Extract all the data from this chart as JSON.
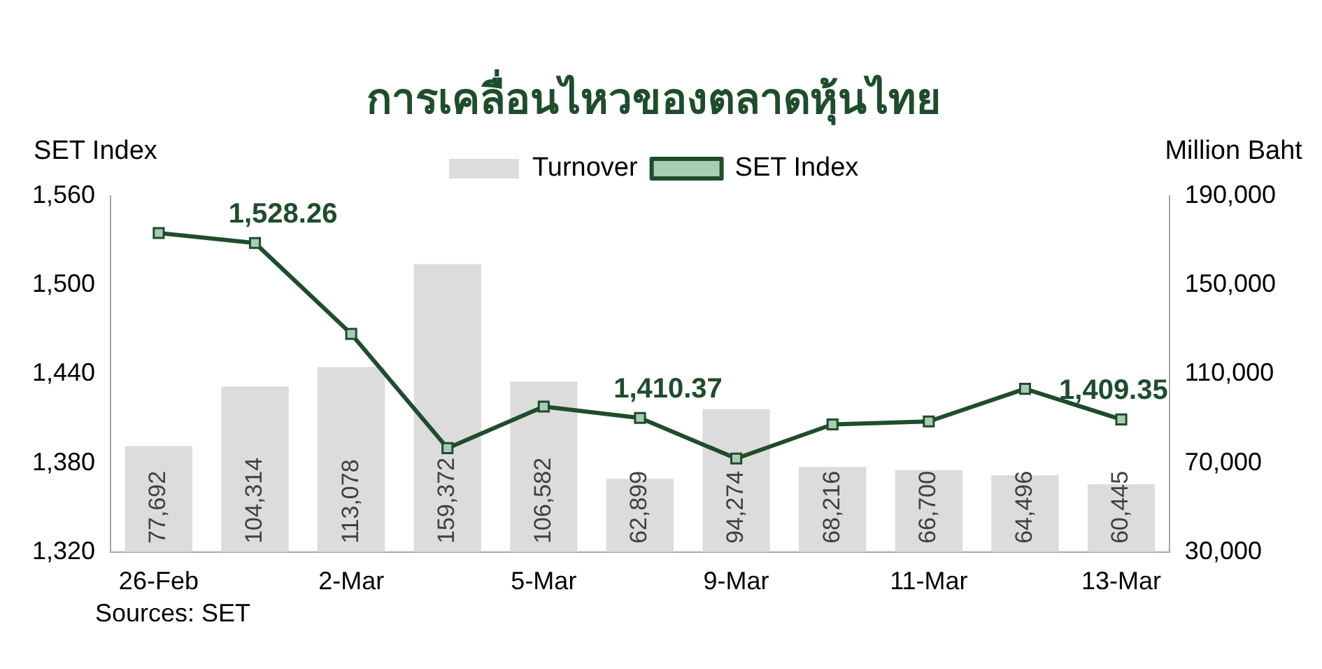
{
  "chart_data": {
    "type": "bar",
    "title": "การเคลื่อนไหวของตลาดหุ้นไทย",
    "ylabel": "SET Index",
    "y2label": "Million Baht",
    "categories": [
      "26-Feb",
      null,
      "2-Mar",
      null,
      "5-Mar",
      null,
      "9-Mar",
      null,
      "11-Mar",
      null,
      "13-Mar"
    ],
    "series": [
      {
        "name": "Turnover",
        "axis": "y2",
        "color": "#dcdcdc",
        "values": [
          77692,
          104314,
          113078,
          159372,
          106582,
          62899,
          94274,
          68216,
          66700,
          64496,
          60445
        ],
        "value_labels": [
          "77,692",
          "104,314",
          "113,078",
          "159,372",
          "106,582",
          "62,899",
          "94,274",
          "68,216",
          "66,700",
          "64,496",
          "60,445"
        ]
      },
      {
        "name": "SET Index",
        "type": "line",
        "axis": "y",
        "color": "#1e4d2b",
        "marker": "square",
        "line_style": "solid",
        "values": [
          1535,
          1528.26,
          1467,
          1390,
          1418,
          1410.37,
          1383,
          1406,
          1408,
          1430,
          1409.35
        ],
        "value_labels": [
          null,
          "1,528.26",
          null,
          null,
          null,
          "1,410.37",
          null,
          null,
          null,
          null,
          "1,409.35"
        ]
      }
    ],
    "ylim": [
      1320,
      1560
    ],
    "yticks": [
      {
        "value": 1320,
        "label": "1,320"
      },
      {
        "value": 1380,
        "label": "1,380"
      },
      {
        "value": 1440,
        "label": "1,440"
      },
      {
        "value": 1500,
        "label": "1,500"
      },
      {
        "value": 1560,
        "label": "1,560"
      }
    ],
    "y2lim": [
      30000,
      190000
    ],
    "y2ticks": [
      {
        "value": 30000,
        "label": "30,000"
      },
      {
        "value": 70000,
        "label": "70,000"
      },
      {
        "value": 110000,
        "label": "110,000"
      },
      {
        "value": 150000,
        "label": "150,000"
      },
      {
        "value": 190000,
        "label": "190,000"
      }
    ],
    "grid": false,
    "legend": "top",
    "annotations": [
      "Sources: SET"
    ]
  }
}
